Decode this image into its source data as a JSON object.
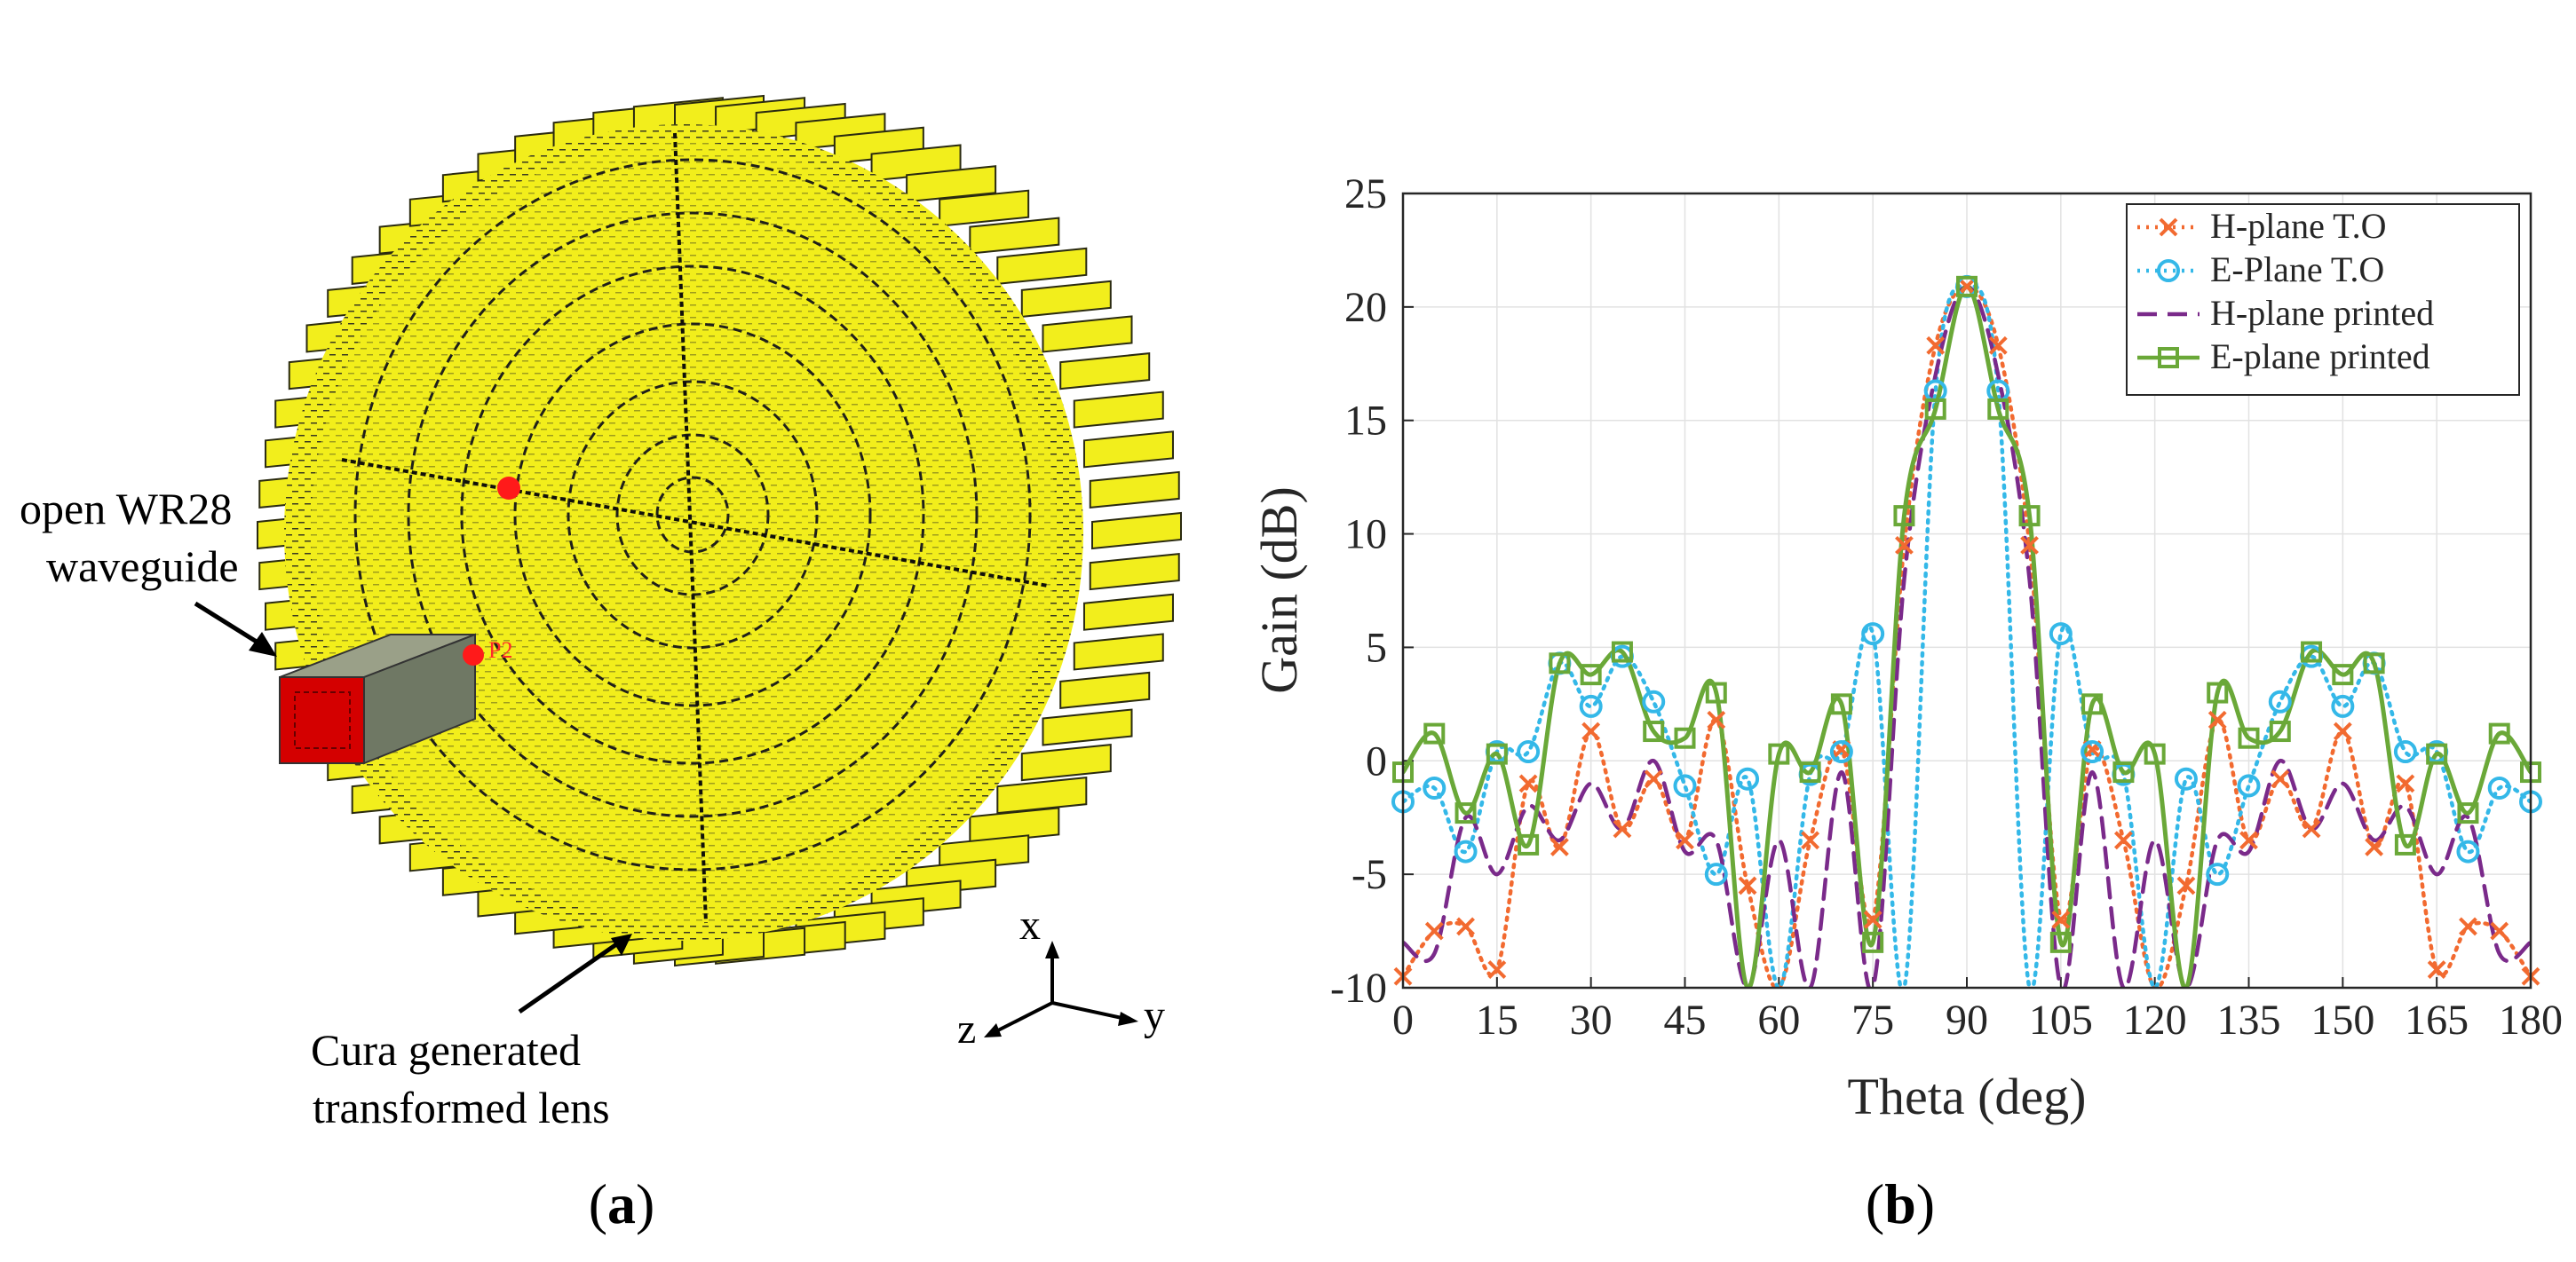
{
  "panel_a": {
    "label_open": "(",
    "label_letter": "a",
    "label_close": ")",
    "waveguide_label_line1": "open WR28",
    "waveguide_label_line2": "waveguide",
    "lens_label_line1": "Cura generated",
    "lens_label_line2": "transformed lens",
    "port_label": "P2",
    "axis_x": "x",
    "axis_y": "y",
    "axis_z": "z",
    "colors": {
      "lens": "#f2ee1c",
      "lens_dark": "#1a1a10",
      "waveguide_body": "#7a8270",
      "waveguide_face": "#d40000",
      "marker": "#ff1a1a"
    }
  },
  "panel_b": {
    "label_open": "(",
    "label_letter": "b",
    "label_close": ")"
  },
  "chart_data": {
    "type": "line",
    "title": "",
    "xlabel": "Theta (deg)",
    "ylabel": "Gain (dB)",
    "xlim": [
      0,
      180
    ],
    "ylim": [
      -10,
      25
    ],
    "xticks": [
      0,
      15,
      30,
      45,
      60,
      75,
      90,
      105,
      120,
      135,
      150,
      165,
      180
    ],
    "yticks": [
      -10,
      -5,
      0,
      5,
      10,
      15,
      20,
      25
    ],
    "grid": true,
    "legend_position": "top-right",
    "series": [
      {
        "name": "H-plane T.O",
        "color": "#f26a30",
        "style": "dotted",
        "marker": "x",
        "x": [
          0,
          5,
          10,
          15,
          20,
          25,
          30,
          35,
          40,
          45,
          50,
          55,
          60,
          65,
          70,
          75,
          80,
          85,
          90,
          95,
          100,
          105,
          110,
          115,
          120,
          125,
          130,
          135,
          140,
          145,
          150,
          155,
          160,
          165,
          170,
          175,
          180
        ],
        "y": [
          -9.5,
          -7.5,
          -7.3,
          -9.2,
          -1.0,
          -3.8,
          1.3,
          -3.0,
          -0.8,
          -3.5,
          1.8,
          -5.5,
          -10,
          -3.5,
          0.5,
          -7.0,
          9.5,
          18.3,
          20.9,
          18.3,
          9.5,
          -7.0,
          0.5,
          -3.5,
          -10,
          -5.5,
          1.8,
          -3.5,
          -0.8,
          -3.0,
          1.3,
          -3.8,
          -1.0,
          -9.2,
          -7.3,
          -7.5,
          -9.5
        ]
      },
      {
        "name": "E-Plane T.O",
        "color": "#34b8e8",
        "style": "dotted",
        "marker": "o",
        "x": [
          0,
          5,
          10,
          15,
          20,
          25,
          30,
          35,
          40,
          45,
          50,
          55,
          60,
          65,
          70,
          75,
          80,
          85,
          90,
          95,
          100,
          105,
          110,
          115,
          120,
          125,
          130,
          135,
          140,
          145,
          150,
          155,
          160,
          165,
          170,
          175,
          180
        ],
        "y": [
          -1.8,
          -1.2,
          -4.0,
          0.4,
          0.4,
          4.3,
          2.4,
          4.6,
          2.6,
          -1.1,
          -5.0,
          -0.8,
          -10,
          -0.6,
          0.4,
          5.6,
          -10,
          16.3,
          20.9,
          16.3,
          -10,
          5.6,
          0.4,
          -0.6,
          -10,
          -0.8,
          -5.0,
          -1.1,
          2.6,
          4.6,
          2.4,
          4.3,
          0.4,
          0.4,
          -4.0,
          -1.2,
          -1.8
        ]
      },
      {
        "name": "H-plane printed",
        "color": "#7a2a8a",
        "style": "dashed",
        "marker": "none",
        "x": [
          0,
          5,
          10,
          15,
          20,
          25,
          30,
          35,
          40,
          45,
          50,
          55,
          60,
          65,
          70,
          75,
          80,
          85,
          90,
          95,
          100,
          105,
          110,
          115,
          120,
          125,
          130,
          135,
          140,
          145,
          150,
          155,
          160,
          165,
          170,
          175,
          180
        ],
        "y": [
          -8.0,
          -8.5,
          -2.5,
          -5.0,
          -2.0,
          -3.5,
          -1.0,
          -3.0,
          0.0,
          -4.0,
          -3.5,
          -10,
          -3.5,
          -10,
          -0.5,
          -10,
          8.0,
          17.0,
          20.9,
          17.0,
          8.0,
          -10,
          -0.5,
          -10,
          -3.5,
          -10,
          -3.5,
          -4.0,
          0.0,
          -3.0,
          -1.0,
          -3.5,
          -2.0,
          -5.0,
          -2.5,
          -8.5,
          -8.0
        ]
      },
      {
        "name": "E-plane printed",
        "color": "#6aa838",
        "style": "solid",
        "marker": "s",
        "x": [
          0,
          5,
          10,
          15,
          20,
          25,
          30,
          35,
          40,
          45,
          50,
          55,
          60,
          65,
          70,
          75,
          80,
          85,
          90,
          95,
          100,
          105,
          110,
          115,
          120,
          125,
          130,
          135,
          140,
          145,
          150,
          155,
          160,
          165,
          170,
          175,
          180
        ],
        "y": [
          -0.5,
          1.2,
          -2.3,
          0.3,
          -3.7,
          4.3,
          3.8,
          4.8,
          1.3,
          1.0,
          3.0,
          -10,
          0.3,
          -0.5,
          2.5,
          -8.0,
          10.8,
          15.5,
          20.9,
          15.5,
          10.8,
          -8.0,
          2.5,
          -0.5,
          0.3,
          -10,
          3.0,
          1.0,
          1.3,
          4.8,
          3.8,
          4.3,
          -3.7,
          0.3,
          -2.3,
          1.2,
          -0.5
        ]
      }
    ]
  }
}
